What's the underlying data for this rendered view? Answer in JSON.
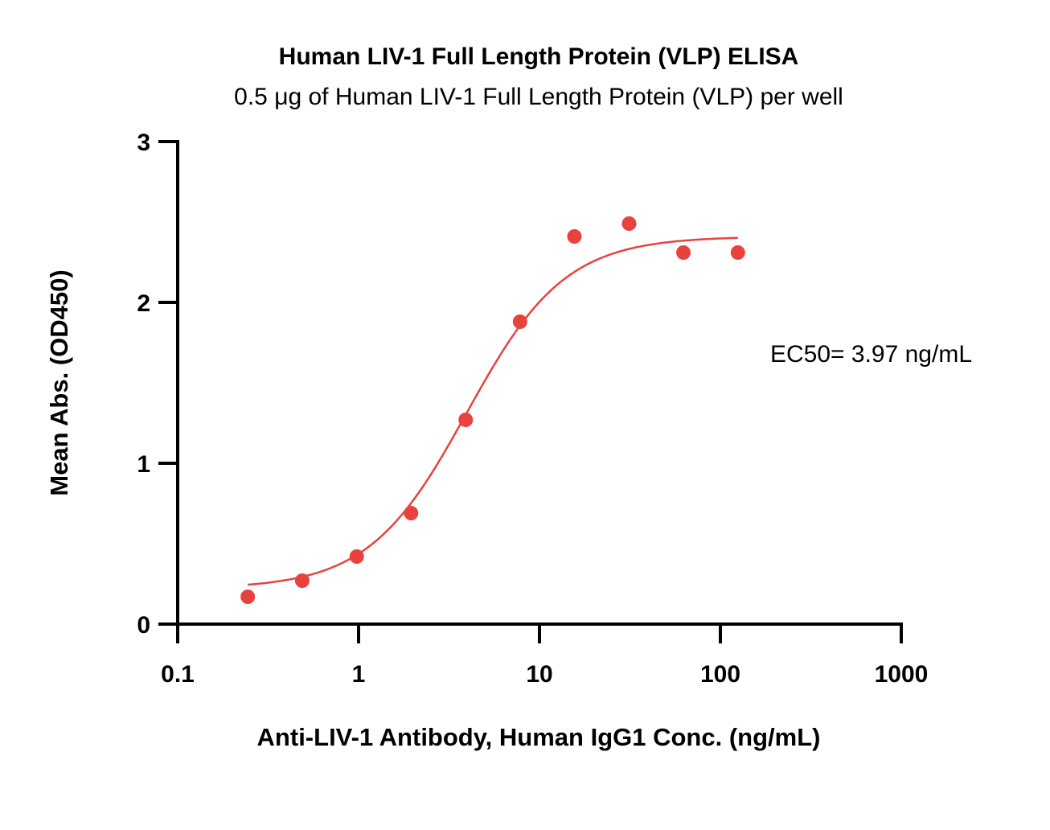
{
  "chart_data": {
    "type": "scatter",
    "title": "Human LIV-1 Full Length Protein (VLP) ELISA",
    "subtitle": "0.5 μg of Human LIV-1 Full Length Protein (VLP) per well",
    "xlabel": "Anti-LIV-1 Antibody, Human IgG1 Conc. (ng/mL)",
    "ylabel": "Mean Abs. (OD450)",
    "x_scale": "log",
    "xlim": [
      0.1,
      1000
    ],
    "ylim": [
      0,
      3
    ],
    "x_ticks": [
      "0.1",
      "1",
      "10",
      "100",
      "1000"
    ],
    "y_ticks": [
      "0",
      "1",
      "2",
      "3"
    ],
    "grid": false,
    "color": "#e8423f",
    "points": {
      "x": [
        0.244,
        0.488,
        0.977,
        1.95,
        3.91,
        7.81,
        15.6,
        31.3,
        62.5,
        125
      ],
      "y": [
        0.17,
        0.27,
        0.42,
        0.69,
        1.27,
        1.88,
        2.41,
        2.49,
        2.31,
        2.31
      ]
    },
    "fit": {
      "model": "4PL",
      "bottom": 0.22,
      "top": 2.41,
      "ec50": 3.97,
      "hill": 1.6,
      "x_range": [
        0.244,
        125
      ]
    },
    "annotation": "EC50= 3.97 ng/mL"
  }
}
